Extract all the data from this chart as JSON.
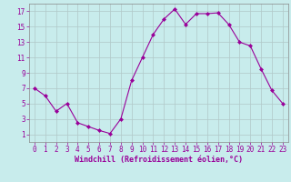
{
  "x": [
    0,
    1,
    2,
    3,
    4,
    5,
    6,
    7,
    8,
    9,
    10,
    11,
    12,
    13,
    14,
    15,
    16,
    17,
    18,
    19,
    20,
    21,
    22,
    23
  ],
  "y": [
    7,
    6,
    4,
    5,
    2.5,
    2,
    1.5,
    1.1,
    3,
    8,
    11,
    14,
    16,
    17.3,
    15.3,
    16.7,
    16.7,
    16.8,
    15.3,
    13,
    12.5,
    9.5,
    6.7,
    5
  ],
  "line_color": "#990099",
  "marker": "D",
  "marker_size": 2.0,
  "bg_color": "#c8ecec",
  "grid_color": "#b0c8c8",
  "xlabel": "Windchill (Refroidissement éolien,°C)",
  "xlabel_color": "#990099",
  "xlabel_fontsize": 6.0,
  "tick_color": "#990099",
  "tick_fontsize": 5.5,
  "ylim": [
    0,
    18
  ],
  "xlim": [
    -0.5,
    23.5
  ],
  "yticks": [
    1,
    3,
    5,
    7,
    9,
    11,
    13,
    15,
    17
  ],
  "xticks": [
    0,
    1,
    2,
    3,
    4,
    5,
    6,
    7,
    8,
    9,
    10,
    11,
    12,
    13,
    14,
    15,
    16,
    17,
    18,
    19,
    20,
    21,
    22,
    23
  ]
}
